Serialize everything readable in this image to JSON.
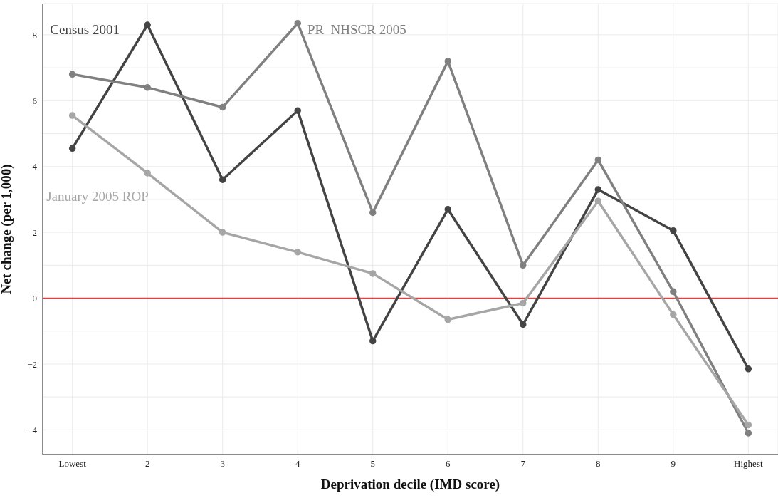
{
  "chart_data": {
    "type": "line",
    "xlabel": "Deprivation decile (IMD score)",
    "ylabel": "Net change (per 1,000)",
    "categories": [
      "Lowest",
      "2",
      "3",
      "4",
      "5",
      "6",
      "7",
      "8",
      "9",
      "Highest"
    ],
    "series": [
      {
        "name": "Census 2001",
        "color": "#444444",
        "values": [
          4.55,
          8.3,
          3.6,
          5.7,
          -1.3,
          2.7,
          -0.8,
          3.3,
          2.05,
          -2.15
        ]
      },
      {
        "name": "PR–NHSCR 2005",
        "color": "#808080",
        "values": [
          6.8,
          6.4,
          5.8,
          8.35,
          2.6,
          7.2,
          1.0,
          4.2,
          0.2,
          -4.1
        ]
      },
      {
        "name": "January 2005 ROP",
        "color": "#a6a6a6",
        "values": [
          5.55,
          3.8,
          2.0,
          1.4,
          0.75,
          -0.65,
          -0.15,
          2.95,
          -0.5,
          -3.85
        ]
      }
    ],
    "ylim": [
      -4.75,
      8.95
    ],
    "yticks": [
      {
        "value": -4,
        "label": "−4"
      },
      {
        "value": -3,
        "label": null
      },
      {
        "value": -2,
        "label": "−2"
      },
      {
        "value": -1,
        "label": null
      },
      0,
      {
        "value": 1,
        "label": null
      },
      2,
      {
        "value": 3,
        "label": null
      },
      4,
      {
        "value": 5,
        "label": null
      },
      6,
      {
        "value": 7,
        "label": null
      },
      8
    ],
    "ref_lines": [
      {
        "axis": "y",
        "value": 0,
        "color": "#ff3333"
      }
    ],
    "grid": true,
    "marker": "circle",
    "line_style": "solid"
  }
}
